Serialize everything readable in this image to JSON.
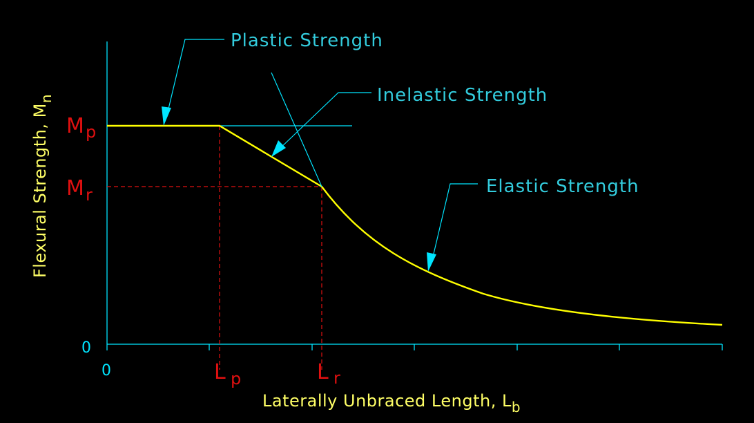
{
  "colors": {
    "background": "#000000",
    "axis": "#00e5ff",
    "curve": "#ffff00",
    "dashed": "#e01010",
    "red_label": "#e01010",
    "cyan_label": "#33ccdd",
    "yellow_label": "#ffff66"
  },
  "labels": {
    "plastic": "Plastic Strength",
    "inelastic": "Inelastic Strength",
    "elastic": "Elastic Strength"
  },
  "y_axis": {
    "label_main": "Flexural Strength, M",
    "label_sub": "n",
    "zero": "0",
    "mp_main": "M",
    "mp_sub": "p",
    "mr_main": "M",
    "mr_sub": "r"
  },
  "x_axis": {
    "label_main": "Laterally Unbraced Length, L",
    "label_sub": "b",
    "zero": "0",
    "lp_main": "L",
    "lp_sub": "p",
    "lr_main": "L",
    "lr_sub": "r"
  }
}
